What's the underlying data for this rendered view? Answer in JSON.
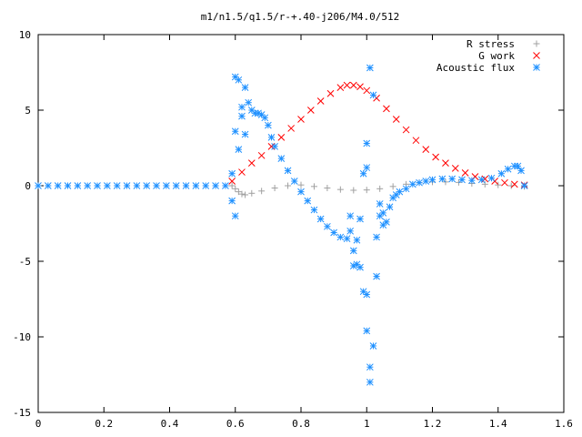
{
  "chart_data": {
    "type": "scatter",
    "title": "m1/n1.5/q1.5/r-+.40-j206/M4.0/512",
    "xlabel": "",
    "ylabel": "",
    "xlim": [
      0,
      1.6
    ],
    "ylim": [
      -15,
      10
    ],
    "x_ticks": [
      "0",
      "0.2",
      "0.4",
      "0.6",
      "0.8",
      "1",
      "1.2",
      "1.4",
      "1.6"
    ],
    "y_ticks": [
      "10",
      "5",
      "0",
      "-5",
      "-10",
      "-15"
    ],
    "grid": false,
    "legend_position": "top-right",
    "series": [
      {
        "name": "R stress",
        "marker": "plus",
        "color": "#a0a0a0",
        "points": [
          [
            0.59,
            0.0
          ],
          [
            0.6,
            -0.2
          ],
          [
            0.61,
            -0.4
          ],
          [
            0.62,
            -0.55
          ],
          [
            0.63,
            -0.6
          ],
          [
            0.65,
            -0.5
          ],
          [
            0.68,
            -0.35
          ],
          [
            0.72,
            -0.15
          ],
          [
            0.76,
            0.0
          ],
          [
            0.8,
            0.05
          ],
          [
            0.84,
            -0.05
          ],
          [
            0.88,
            -0.15
          ],
          [
            0.92,
            -0.25
          ],
          [
            0.96,
            -0.3
          ],
          [
            1.0,
            -0.28
          ],
          [
            1.04,
            -0.2
          ],
          [
            1.08,
            -0.05
          ],
          [
            1.12,
            0.1
          ],
          [
            1.16,
            0.2
          ],
          [
            1.2,
            0.25
          ],
          [
            1.24,
            0.25
          ],
          [
            1.28,
            0.22
          ],
          [
            1.32,
            0.15
          ],
          [
            1.36,
            0.1
          ],
          [
            1.4,
            0.05
          ],
          [
            1.44,
            0.0
          ],
          [
            1.48,
            -0.05
          ]
        ]
      },
      {
        "name": "G work",
        "marker": "cross",
        "color": "#ff0000",
        "points": [
          [
            0.59,
            0.3
          ],
          [
            0.62,
            0.9
          ],
          [
            0.65,
            1.5
          ],
          [
            0.68,
            2.0
          ],
          [
            0.71,
            2.6
          ],
          [
            0.74,
            3.2
          ],
          [
            0.77,
            3.8
          ],
          [
            0.8,
            4.4
          ],
          [
            0.83,
            5.0
          ],
          [
            0.86,
            5.6
          ],
          [
            0.89,
            6.1
          ],
          [
            0.92,
            6.5
          ],
          [
            0.94,
            6.65
          ],
          [
            0.96,
            6.65
          ],
          [
            0.98,
            6.55
          ],
          [
            1.0,
            6.3
          ],
          [
            1.03,
            5.8
          ],
          [
            1.06,
            5.1
          ],
          [
            1.09,
            4.4
          ],
          [
            1.12,
            3.7
          ],
          [
            1.15,
            3.0
          ],
          [
            1.18,
            2.4
          ],
          [
            1.21,
            1.9
          ],
          [
            1.24,
            1.5
          ],
          [
            1.27,
            1.15
          ],
          [
            1.3,
            0.85
          ],
          [
            1.33,
            0.6
          ],
          [
            1.36,
            0.45
          ],
          [
            1.39,
            0.3
          ],
          [
            1.42,
            0.2
          ],
          [
            1.45,
            0.1
          ],
          [
            1.48,
            0.05
          ]
        ]
      },
      {
        "name": "Acoustic flux",
        "marker": "star",
        "color": "#1e90ff",
        "points": [
          [
            0.0,
            0.0
          ],
          [
            0.03,
            0.0
          ],
          [
            0.06,
            0.0
          ],
          [
            0.09,
            0.0
          ],
          [
            0.12,
            0.0
          ],
          [
            0.15,
            0.0
          ],
          [
            0.18,
            0.0
          ],
          [
            0.21,
            0.0
          ],
          [
            0.24,
            0.0
          ],
          [
            0.27,
            0.0
          ],
          [
            0.3,
            0.0
          ],
          [
            0.33,
            0.0
          ],
          [
            0.36,
            0.0
          ],
          [
            0.39,
            0.0
          ],
          [
            0.42,
            0.0
          ],
          [
            0.45,
            0.0
          ],
          [
            0.48,
            0.0
          ],
          [
            0.51,
            0.0
          ],
          [
            0.54,
            0.0
          ],
          [
            0.57,
            0.0
          ],
          [
            0.59,
            -1.0
          ],
          [
            0.59,
            0.8
          ],
          [
            0.6,
            7.2
          ],
          [
            0.6,
            3.6
          ],
          [
            0.6,
            -2.0
          ],
          [
            0.61,
            2.4
          ],
          [
            0.61,
            7.0
          ],
          [
            0.62,
            5.2
          ],
          [
            0.62,
            4.6
          ],
          [
            0.63,
            3.4
          ],
          [
            0.63,
            6.5
          ],
          [
            0.64,
            5.5
          ],
          [
            0.65,
            5.0
          ],
          [
            0.66,
            4.8
          ],
          [
            0.67,
            4.8
          ],
          [
            0.68,
            4.7
          ],
          [
            0.69,
            4.5
          ],
          [
            0.7,
            4.0
          ],
          [
            0.71,
            3.2
          ],
          [
            0.72,
            2.6
          ],
          [
            0.74,
            1.8
          ],
          [
            0.76,
            1.0
          ],
          [
            0.78,
            0.3
          ],
          [
            0.8,
            -0.4
          ],
          [
            0.82,
            -1.0
          ],
          [
            0.84,
            -1.6
          ],
          [
            0.86,
            -2.2
          ],
          [
            0.88,
            -2.7
          ],
          [
            0.9,
            -3.1
          ],
          [
            0.92,
            -3.4
          ],
          [
            0.94,
            -3.5
          ],
          [
            0.95,
            -3.0
          ],
          [
            0.95,
            -2.0
          ],
          [
            0.96,
            -4.3
          ],
          [
            0.96,
            -5.3
          ],
          [
            0.97,
            -3.6
          ],
          [
            0.97,
            -5.2
          ],
          [
            0.98,
            -5.4
          ],
          [
            0.98,
            -2.2
          ],
          [
            0.99,
            -7.0
          ],
          [
            0.99,
            0.8
          ],
          [
            1.0,
            -7.2
          ],
          [
            1.0,
            1.2
          ],
          [
            1.0,
            2.8
          ],
          [
            1.0,
            -9.6
          ],
          [
            1.01,
            7.8
          ],
          [
            1.01,
            -12.0
          ],
          [
            1.01,
            -13.0
          ],
          [
            1.02,
            -10.6
          ],
          [
            1.02,
            6.0
          ],
          [
            1.03,
            -6.0
          ],
          [
            1.03,
            -3.4
          ],
          [
            1.04,
            -2.0
          ],
          [
            1.04,
            -1.2
          ],
          [
            1.05,
            -2.6
          ],
          [
            1.05,
            -1.8
          ],
          [
            1.06,
            -2.4
          ],
          [
            1.07,
            -1.4
          ],
          [
            1.08,
            -0.8
          ],
          [
            1.09,
            -0.6
          ],
          [
            1.1,
            -0.4
          ],
          [
            1.12,
            -0.2
          ],
          [
            1.14,
            0.1
          ],
          [
            1.16,
            0.2
          ],
          [
            1.18,
            0.3
          ],
          [
            1.2,
            0.4
          ],
          [
            1.23,
            0.45
          ],
          [
            1.26,
            0.45
          ],
          [
            1.29,
            0.4
          ],
          [
            1.32,
            0.35
          ],
          [
            1.35,
            0.4
          ],
          [
            1.38,
            0.5
          ],
          [
            1.41,
            0.8
          ],
          [
            1.43,
            1.1
          ],
          [
            1.45,
            1.3
          ],
          [
            1.46,
            1.3
          ],
          [
            1.47,
            1.0
          ],
          [
            1.48,
            0.0
          ]
        ]
      }
    ]
  }
}
